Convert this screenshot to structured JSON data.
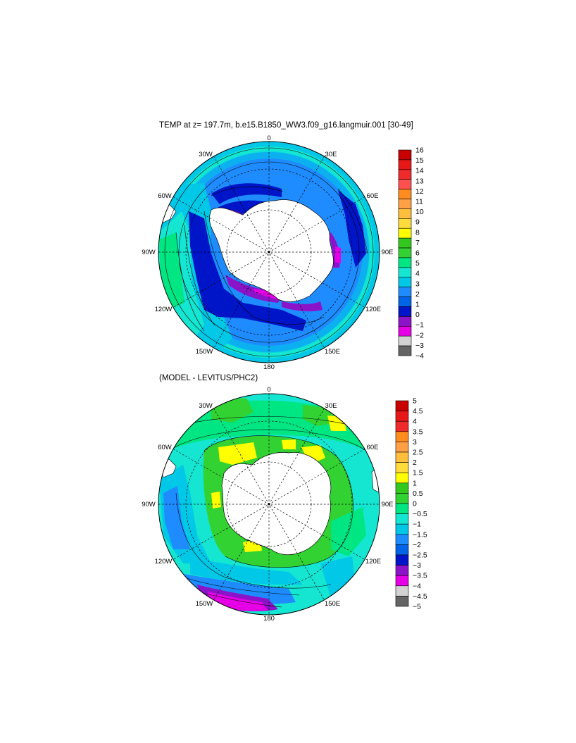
{
  "panel1": {
    "title": "TEMP at z= 197.7m, b.e15.B1850_WW3.f09_g16.langmuir.001 [30-49]",
    "labels": {
      "n0": "0",
      "n30w": "30W",
      "n30e": "30E",
      "n60w": "60W",
      "n60e": "60E",
      "n90w": "90W",
      "n90e": "90E",
      "n120w": "120W",
      "n120e": "120E",
      "n150w": "150W",
      "n150e": "150E",
      "n180": "180"
    },
    "colorbar": {
      "labels": [
        "16",
        "15",
        "14",
        "13",
        "12",
        "11",
        "10",
        "9",
        "8",
        "7",
        "6",
        "5",
        "4",
        "3",
        "2",
        "1",
        "0",
        "−1",
        "−2",
        "−3",
        "−4"
      ],
      "colors": [
        "#c80000",
        "#e81818",
        "#ee2a2a",
        "#ff5050",
        "#ff8c1e",
        "#ffa046",
        "#ffbe3c",
        "#ffdc3c",
        "#ffff00",
        "#32c81e",
        "#32d232",
        "#00e682",
        "#14e6d2",
        "#00c8e6",
        "#1e8cff",
        "#0064e6",
        "#0014c8",
        "#8c14c8",
        "#e600e6",
        "#d2d2d2",
        "#646464"
      ]
    }
  },
  "panel2": {
    "title": "(MODEL - LEVITUS/PHC2)",
    "labels": {
      "n0": "0",
      "n30w": "30W",
      "n30e": "30E",
      "n60w": "60W",
      "n60e": "60E",
      "n90w": "90W",
      "n90e": "90E",
      "n120w": "120W",
      "n120e": "120E",
      "n150w": "150W",
      "n150e": "150E",
      "n180": "180"
    },
    "colorbar": {
      "labels": [
        "5",
        "4.5",
        "4",
        "3.5",
        "3",
        "2.5",
        "2",
        "1.5",
        "1",
        "0.5",
        "0",
        "−0.5",
        "−1",
        "−1.5",
        "−2",
        "−2.5",
        "−3",
        "−3.5",
        "−4",
        "−4.5",
        "−5"
      ],
      "colors": [
        "#c80000",
        "#e81818",
        "#ee2a2a",
        "#ff8c1e",
        "#ffa046",
        "#ffbe3c",
        "#ffdc3c",
        "#ffff00",
        "#32c81e",
        "#32d232",
        "#00e682",
        "#14e6d2",
        "#00c8e6",
        "#1e8cff",
        "#0064e6",
        "#0014c8",
        "#8c14c8",
        "#e600e6",
        "#d2d2d2",
        "#646464"
      ]
    }
  }
}
